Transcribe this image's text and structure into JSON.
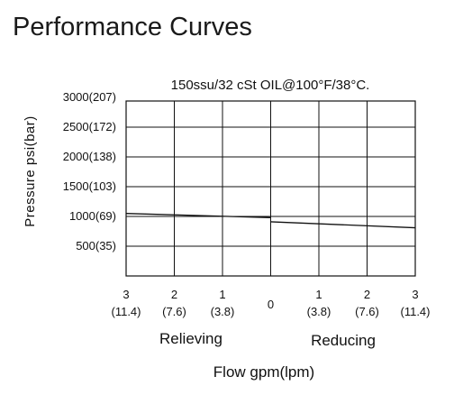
{
  "page_title": "Performance Curves",
  "chart_data": {
    "type": "line",
    "title": "150ssu/32 cSt OIL@100°F/38°C.",
    "ylabel": "Pressure psi(bar)",
    "xlabel": "Flow gpm(lpm)",
    "x_side_labels": {
      "left": "Relieving",
      "right": "Reducing"
    },
    "y_ticks": [
      {
        "value": 3000,
        "label": "3000(207)"
      },
      {
        "value": 2500,
        "label": "2500(172)"
      },
      {
        "value": 2000,
        "label": "2000(138)"
      },
      {
        "value": 1500,
        "label": "1500(103)"
      },
      {
        "value": 1000,
        "label": "1000(69)"
      },
      {
        "value": 500,
        "label": "500(35)"
      }
    ],
    "ylim": [
      0,
      3000
    ],
    "x_ticks": [
      {
        "value": -3,
        "label": "3",
        "sub": "(11.4)"
      },
      {
        "value": -2,
        "label": "2",
        "sub": "(7.6)"
      },
      {
        "value": -1,
        "label": "1",
        "sub": "(3.8)"
      },
      {
        "value": 0,
        "label": "0",
        "sub": ""
      },
      {
        "value": 1,
        "label": "1",
        "sub": "(3.8)"
      },
      {
        "value": 2,
        "label": "2",
        "sub": "(7.6)"
      },
      {
        "value": 3,
        "label": "3",
        "sub": "(11.4)"
      }
    ],
    "xlim": [
      -3,
      3
    ],
    "grid": true,
    "series": [
      {
        "values": [
          {
            "x": -3,
            "y": 1050
          },
          {
            "x": 0,
            "y": 980
          }
        ]
      },
      {
        "values": [
          {
            "x": 0,
            "y": 910
          },
          {
            "x": 3,
            "y": 810
          }
        ]
      }
    ]
  }
}
